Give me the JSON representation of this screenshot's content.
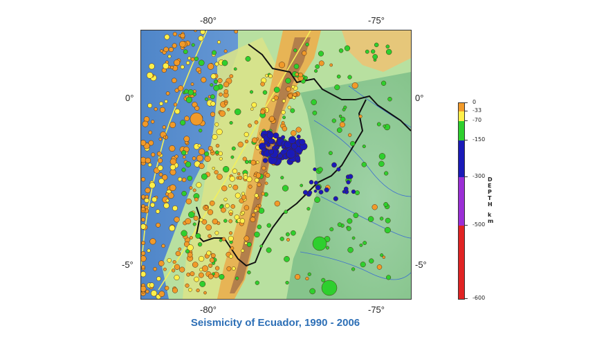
{
  "map": {
    "title": "Seismicity of Ecuador, 1990 - 2006",
    "top_ticks": [
      "-80°",
      "-75°"
    ],
    "bottom_ticks": [
      "-80°",
      "-75°"
    ],
    "left_ticks": [
      "0°",
      "-5°"
    ],
    "right_ticks": [
      "0°",
      "-5°"
    ]
  },
  "colorbar": {
    "label_letters": [
      "D",
      "E",
      "P",
      "T",
      "H",
      "k",
      "m"
    ],
    "ticks": [
      "0",
      "-33",
      "-70",
      "-150",
      "-300",
      "-500",
      "-600"
    ],
    "colors": [
      "#f19a2a",
      "#fff04a",
      "#2ecf2e",
      "#1a1ab8",
      "#9b2ed6",
      "#e02323"
    ]
  }
}
